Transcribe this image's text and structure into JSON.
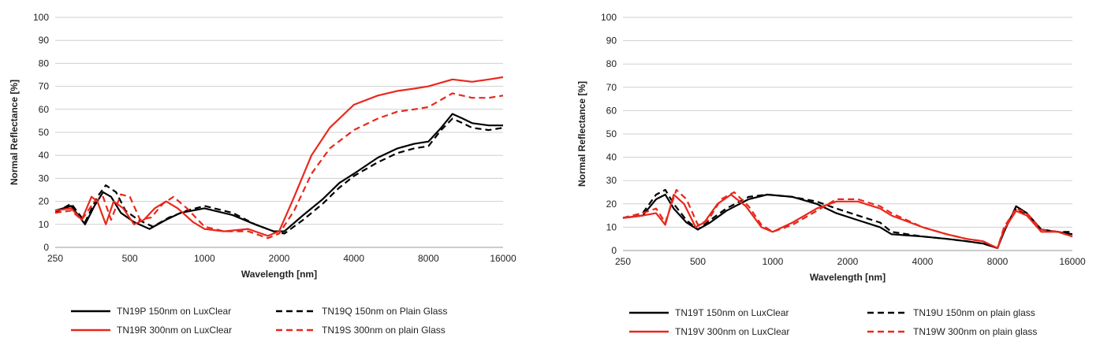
{
  "chart_data": [
    {
      "type": "line",
      "title": "",
      "xlabel": "Wavelength [nm]",
      "ylabel": "Normal Reflectance [%]",
      "x_scale": "log",
      "xlim": [
        250,
        16000
      ],
      "ylim": [
        0,
        100
      ],
      "xticks": [
        250,
        500,
        1000,
        2000,
        4000,
        8000,
        16000
      ],
      "yticks": [
        0,
        10,
        20,
        30,
        40,
        50,
        60,
        70,
        80,
        90,
        100
      ],
      "grid": true,
      "legend_position": "bottom",
      "series": [
        {
          "name": "TN19P 150nm on LuxClear",
          "color": "#000000",
          "dash": "solid",
          "points": [
            [
              250,
              16
            ],
            [
              290,
              18
            ],
            [
              330,
              10
            ],
            [
              360,
              18
            ],
            [
              390,
              24
            ],
            [
              420,
              22
            ],
            [
              460,
              15
            ],
            [
              520,
              11
            ],
            [
              600,
              8
            ],
            [
              700,
              12
            ],
            [
              800,
              15
            ],
            [
              1000,
              17
            ],
            [
              1300,
              14
            ],
            [
              1600,
              10
            ],
            [
              1900,
              7
            ],
            [
              2100,
              7
            ],
            [
              2500,
              14
            ],
            [
              3000,
              21
            ],
            [
              3500,
              28
            ],
            [
              4000,
              32
            ],
            [
              5000,
              39
            ],
            [
              6000,
              43
            ],
            [
              7000,
              45
            ],
            [
              8000,
              46
            ],
            [
              9000,
              52
            ],
            [
              10000,
              58
            ],
            [
              11000,
              56
            ],
            [
              12000,
              54
            ],
            [
              14000,
              53
            ],
            [
              16000,
              53
            ]
          ]
        },
        {
          "name": "TN19Q 150nm on Plain Glass",
          "color": "#000000",
          "dash": "dashed",
          "points": [
            [
              250,
              15
            ],
            [
              290,
              19
            ],
            [
              330,
              11
            ],
            [
              370,
              22
            ],
            [
              400,
              27
            ],
            [
              440,
              24
            ],
            [
              480,
              16
            ],
            [
              540,
              12
            ],
            [
              620,
              9
            ],
            [
              720,
              13
            ],
            [
              850,
              16
            ],
            [
              1000,
              18
            ],
            [
              1300,
              15
            ],
            [
              1600,
              10
            ],
            [
              1900,
              7
            ],
            [
              2100,
              6
            ],
            [
              2500,
              12
            ],
            [
              3000,
              19
            ],
            [
              3500,
              26
            ],
            [
              4000,
              31
            ],
            [
              5000,
              37
            ],
            [
              6000,
              41
            ],
            [
              7000,
              43
            ],
            [
              8000,
              44
            ],
            [
              9000,
              51
            ],
            [
              10000,
              56
            ],
            [
              11000,
              54
            ],
            [
              12000,
              52
            ],
            [
              14000,
              51
            ],
            [
              16000,
              52
            ]
          ]
        },
        {
          "name": "TN19R 300nm on LuxClear",
          "color": "#e8281c",
          "dash": "solid",
          "points": [
            [
              250,
              16
            ],
            [
              290,
              17
            ],
            [
              320,
              12
            ],
            [
              350,
              22
            ],
            [
              370,
              20
            ],
            [
              400,
              10
            ],
            [
              430,
              20
            ],
            [
              470,
              17
            ],
            [
              520,
              10
            ],
            [
              570,
              12
            ],
            [
              630,
              17
            ],
            [
              700,
              20
            ],
            [
              780,
              17
            ],
            [
              900,
              11
            ],
            [
              1000,
              8
            ],
            [
              1200,
              7
            ],
            [
              1500,
              8
            ],
            [
              1800,
              5
            ],
            [
              2000,
              7
            ],
            [
              2300,
              22
            ],
            [
              2700,
              40
            ],
            [
              3200,
              52
            ],
            [
              4000,
              62
            ],
            [
              5000,
              66
            ],
            [
              6000,
              68
            ],
            [
              7000,
              69
            ],
            [
              8000,
              70
            ],
            [
              10000,
              73
            ],
            [
              12000,
              72
            ],
            [
              14000,
              73
            ],
            [
              16000,
              74
            ]
          ]
        },
        {
          "name": "TN19S 300nm on plain Glass",
          "color": "#e8281c",
          "dash": "dashed",
          "points": [
            [
              250,
              15
            ],
            [
              290,
              16
            ],
            [
              320,
              12
            ],
            [
              360,
              20
            ],
            [
              390,
              22
            ],
            [
              420,
              12
            ],
            [
              460,
              23
            ],
            [
              500,
              22
            ],
            [
              550,
              12
            ],
            [
              610,
              13
            ],
            [
              680,
              19
            ],
            [
              750,
              22
            ],
            [
              850,
              17
            ],
            [
              1000,
              9
            ],
            [
              1200,
              7
            ],
            [
              1500,
              7
            ],
            [
              1800,
              4
            ],
            [
              2000,
              6
            ],
            [
              2300,
              16
            ],
            [
              2700,
              32
            ],
            [
              3200,
              43
            ],
            [
              4000,
              51
            ],
            [
              5000,
              56
            ],
            [
              6000,
              59
            ],
            [
              7000,
              60
            ],
            [
              8000,
              61
            ],
            [
              10000,
              67
            ],
            [
              12000,
              65
            ],
            [
              14000,
              65
            ],
            [
              16000,
              66
            ]
          ]
        }
      ]
    },
    {
      "type": "line",
      "title": "",
      "xlabel": "Wavelength [nm]",
      "ylabel": "Normal Reflectance [%]",
      "x_scale": "log",
      "xlim": [
        250,
        16000
      ],
      "ylim": [
        0,
        100
      ],
      "xticks": [
        250,
        500,
        1000,
        2000,
        4000,
        8000,
        16000
      ],
      "yticks": [
        0,
        10,
        20,
        30,
        40,
        50,
        60,
        70,
        80,
        90,
        100
      ],
      "grid": true,
      "legend_position": "bottom",
      "series": [
        {
          "name": "TN19T 150nm on LuxClear",
          "color": "#000000",
          "dash": "solid",
          "points": [
            [
              250,
              14
            ],
            [
              300,
              15
            ],
            [
              340,
              22
            ],
            [
              370,
              24
            ],
            [
              400,
              18
            ],
            [
              450,
              12
            ],
            [
              500,
              9
            ],
            [
              560,
              12
            ],
            [
              650,
              17
            ],
            [
              800,
              22
            ],
            [
              950,
              24
            ],
            [
              1200,
              23
            ],
            [
              1500,
              20
            ],
            [
              1800,
              16
            ],
            [
              2200,
              13
            ],
            [
              2700,
              10
            ],
            [
              3000,
              7
            ],
            [
              4000,
              6
            ],
            [
              5000,
              5
            ],
            [
              6000,
              4
            ],
            [
              7000,
              3
            ],
            [
              8000,
              1
            ],
            [
              8500,
              8
            ],
            [
              9500,
              19
            ],
            [
              10500,
              16
            ],
            [
              12000,
              9
            ],
            [
              14000,
              8
            ],
            [
              16000,
              7
            ]
          ]
        },
        {
          "name": "TN19U 150nm on plain glass",
          "color": "#000000",
          "dash": "dashed",
          "points": [
            [
              250,
              14
            ],
            [
              300,
              16
            ],
            [
              340,
              24
            ],
            [
              370,
              26
            ],
            [
              400,
              20
            ],
            [
              450,
              13
            ],
            [
              500,
              9
            ],
            [
              560,
              13
            ],
            [
              650,
              18
            ],
            [
              800,
              23
            ],
            [
              950,
              24
            ],
            [
              1200,
              23
            ],
            [
              1500,
              21
            ],
            [
              1800,
              18
            ],
            [
              2200,
              15
            ],
            [
              2700,
              12
            ],
            [
              3000,
              8
            ],
            [
              4000,
              6
            ],
            [
              5000,
              5
            ],
            [
              6000,
              4
            ],
            [
              7000,
              3
            ],
            [
              8000,
              1
            ],
            [
              8500,
              9
            ],
            [
              9500,
              18
            ],
            [
              10500,
              15
            ],
            [
              12000,
              9
            ],
            [
              14000,
              8
            ],
            [
              16000,
              8
            ]
          ]
        },
        {
          "name": "TN19V 300nm on LuxClear",
          "color": "#e8281c",
          "dash": "solid",
          "points": [
            [
              250,
              14
            ],
            [
              300,
              15
            ],
            [
              340,
              16
            ],
            [
              370,
              11
            ],
            [
              400,
              24
            ],
            [
              440,
              20
            ],
            [
              490,
              10
            ],
            [
              530,
              12
            ],
            [
              600,
              20
            ],
            [
              680,
              24
            ],
            [
              780,
              19
            ],
            [
              900,
              10
            ],
            [
              1000,
              8
            ],
            [
              1200,
              12
            ],
            [
              1500,
              18
            ],
            [
              1800,
              21
            ],
            [
              2200,
              21
            ],
            [
              2700,
              18
            ],
            [
              3000,
              15
            ],
            [
              4000,
              10
            ],
            [
              5000,
              7
            ],
            [
              6000,
              5
            ],
            [
              7000,
              4
            ],
            [
              8000,
              1
            ],
            [
              8500,
              9
            ],
            [
              9500,
              17
            ],
            [
              10500,
              15
            ],
            [
              12000,
              8
            ],
            [
              14000,
              8
            ],
            [
              16000,
              6
            ]
          ]
        },
        {
          "name": "TN19W 300nm on plain glass",
          "color": "#e8281c",
          "dash": "dashed",
          "points": [
            [
              250,
              14
            ],
            [
              300,
              16
            ],
            [
              340,
              18
            ],
            [
              370,
              12
            ],
            [
              410,
              26
            ],
            [
              450,
              22
            ],
            [
              500,
              11
            ],
            [
              550,
              13
            ],
            [
              620,
              22
            ],
            [
              700,
              25
            ],
            [
              800,
              19
            ],
            [
              900,
              11
            ],
            [
              1000,
              8
            ],
            [
              1200,
              11
            ],
            [
              1500,
              17
            ],
            [
              1800,
              22
            ],
            [
              2200,
              22
            ],
            [
              2700,
              19
            ],
            [
              3000,
              16
            ],
            [
              4000,
              10
            ],
            [
              5000,
              7
            ],
            [
              6000,
              5
            ],
            [
              7000,
              4
            ],
            [
              8000,
              1
            ],
            [
              8500,
              10
            ],
            [
              9500,
              18
            ],
            [
              10500,
              16
            ],
            [
              12000,
              9
            ],
            [
              14000,
              8
            ],
            [
              16000,
              6
            ]
          ]
        }
      ]
    }
  ]
}
